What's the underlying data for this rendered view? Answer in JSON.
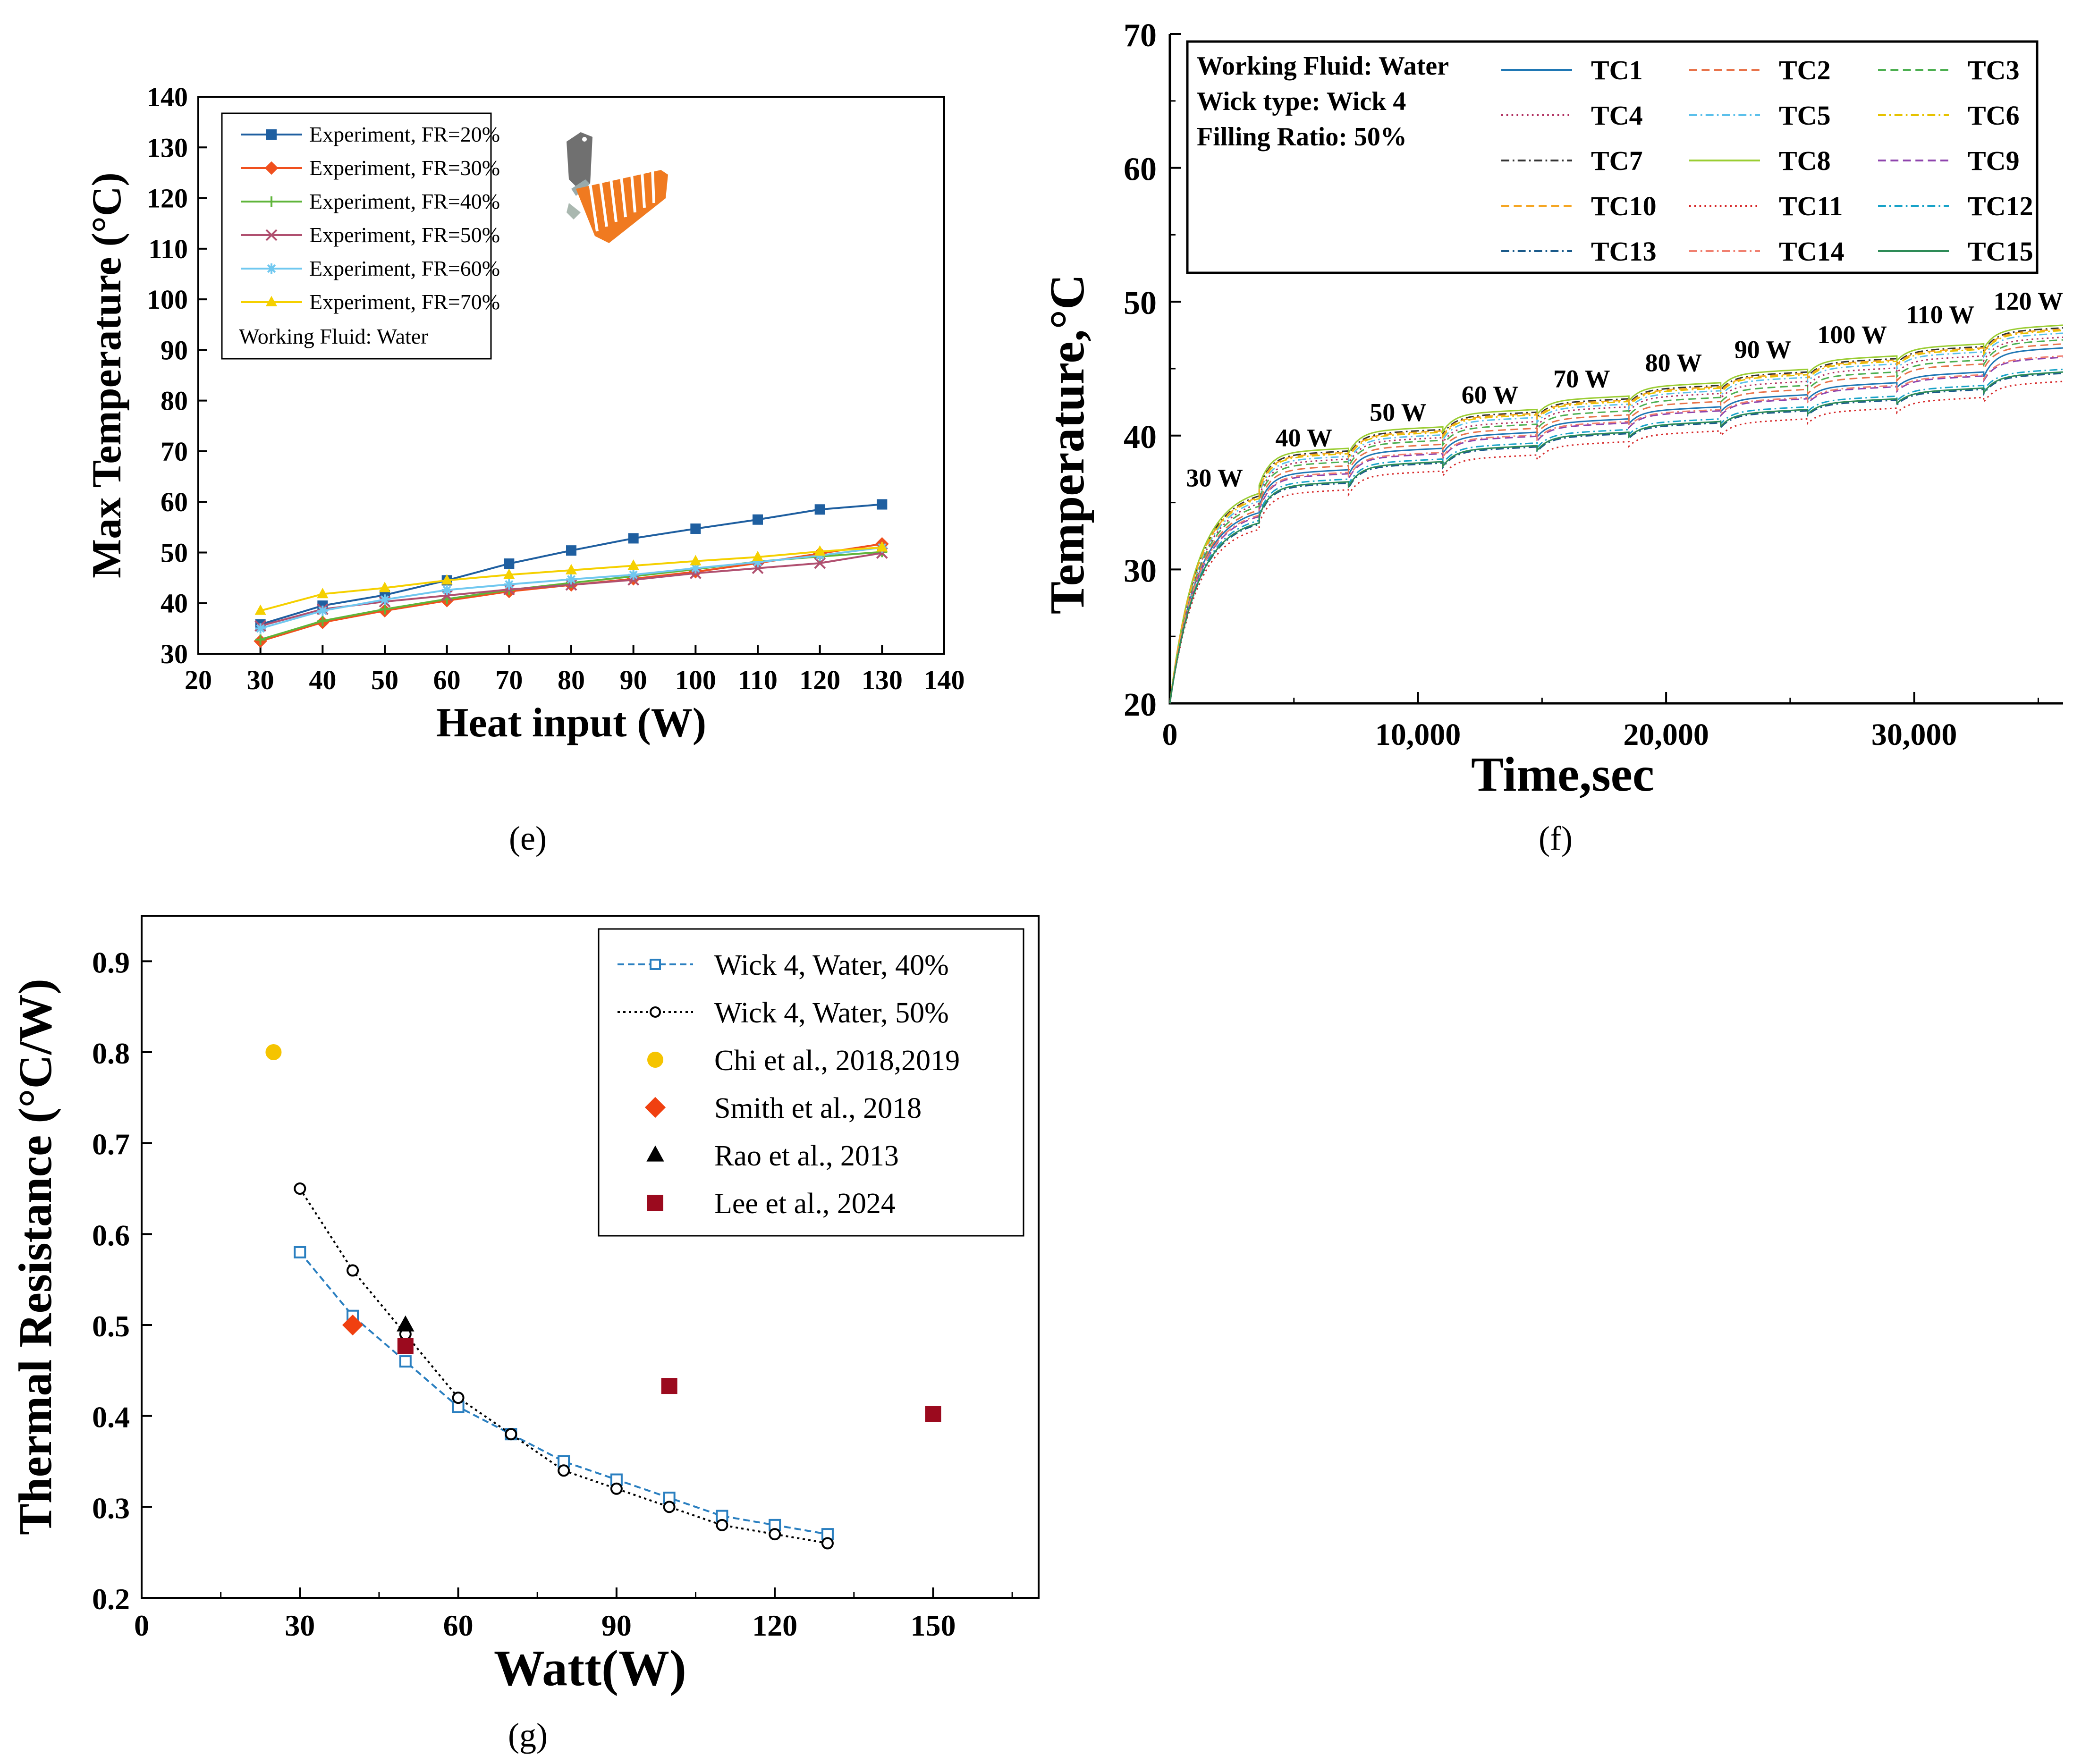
{
  "chart_data": [
    {
      "panel": "e",
      "type": "line",
      "caption": "(e)",
      "xlabel": "Heat input (W)",
      "ylabel": "Max Temperature (°C)",
      "xlim": [
        20,
        140
      ],
      "ylim": [
        30,
        140
      ],
      "xticks": [
        20,
        30,
        40,
        50,
        60,
        70,
        80,
        90,
        100,
        110,
        120,
        130,
        140
      ],
      "yticks": [
        30,
        40,
        50,
        60,
        70,
        80,
        90,
        100,
        110,
        120,
        130,
        140
      ],
      "x": [
        30,
        40,
        50,
        60,
        70,
        80,
        90,
        100,
        110,
        120,
        130
      ],
      "legend_note": "Working Fluid: Water",
      "legend_position": "top-left",
      "inset": "heat-pipe-model-icon",
      "series": [
        {
          "name": "Experiment, FR=20%",
          "color": "#1f5fa0",
          "marker": "square",
          "values": [
            35.8,
            39.5,
            41.6,
            44.5,
            47.8,
            50.4,
            52.8,
            54.7,
            56.5,
            58.5,
            59.5
          ]
        },
        {
          "name": "Experiment, FR=30%",
          "color": "#f0501e",
          "marker": "diamond",
          "values": [
            32.5,
            36.2,
            38.5,
            40.5,
            42.3,
            43.6,
            44.8,
            46.2,
            47.9,
            49.8,
            51.7
          ]
        },
        {
          "name": "Experiment, FR=40%",
          "color": "#5fb53a",
          "marker": "plus",
          "values": [
            32.8,
            36.5,
            38.8,
            40.8,
            42.6,
            44.0,
            45.3,
            46.7,
            48.2,
            49.2,
            50.1
          ]
        },
        {
          "name": "Experiment, FR=50%",
          "color": "#b05070",
          "marker": "x",
          "values": [
            35.5,
            38.8,
            40.3,
            41.5,
            42.7,
            43.6,
            44.6,
            45.9,
            46.9,
            47.9,
            49.9
          ]
        },
        {
          "name": "Experiment, FR=60%",
          "color": "#70c8f0",
          "marker": "asterisk",
          "values": [
            35.0,
            38.5,
            40.7,
            42.6,
            43.7,
            44.7,
            45.6,
            46.9,
            48.1,
            49.4,
            51.0
          ]
        },
        {
          "name": "Experiment, FR=70%",
          "color": "#f5d000",
          "marker": "triangle",
          "values": [
            38.5,
            41.8,
            43.0,
            44.5,
            45.6,
            46.5,
            47.4,
            48.3,
            49.1,
            50.2,
            51.0
          ]
        }
      ]
    },
    {
      "panel": "f",
      "type": "line",
      "caption": "(f)",
      "xlabel": "Time,sec",
      "ylabel": "Temperature,°C",
      "xlim": [
        0,
        36000
      ],
      "ylim": [
        20,
        70
      ],
      "xticks": [
        0,
        10000,
        20000,
        30000
      ],
      "xtick_labels": [
        "0",
        "10,000",
        "20,000",
        "30,000"
      ],
      "yticks": [
        20,
        30,
        40,
        50,
        60,
        70
      ],
      "info": [
        "Working Fluid: Water",
        "Wick type: Wick 4",
        "Filling Ratio: 50%"
      ],
      "legend_position": "top",
      "step_times": [
        0,
        3600,
        7200,
        11000,
        14800,
        18500,
        22200,
        25700,
        29300,
        32800
      ],
      "step_annotations": [
        {
          "label": "30 W",
          "x": 1800,
          "y": 36.2
        },
        {
          "label": "40 W",
          "x": 5400,
          "y": 39.2
        },
        {
          "label": "50 W",
          "x": 9200,
          "y": 41.1
        },
        {
          "label": "60 W",
          "x": 12900,
          "y": 42.4
        },
        {
          "label": "70 W",
          "x": 16600,
          "y": 43.6
        },
        {
          "label": "80 W",
          "x": 20300,
          "y": 44.8
        },
        {
          "label": "90 W",
          "x": 23900,
          "y": 45.8
        },
        {
          "label": "100 W",
          "x": 27500,
          "y": 46.9
        },
        {
          "label": "110 W",
          "x": 31050,
          "y": 48.4
        },
        {
          "label": "120 W",
          "x": 34600,
          "y": 49.4
        }
      ],
      "series": [
        {
          "name": "TC1",
          "color": "#1f77b4",
          "dash": "solid",
          "step_values": [
            34.8,
            37.1,
            38.7,
            39.9,
            40.9,
            41.8,
            42.7,
            43.6,
            44.4,
            46.2
          ]
        },
        {
          "name": "TC2",
          "color": "#e8734a",
          "dash": "dash",
          "step_values": [
            35.0,
            37.4,
            39.0,
            40.2,
            41.2,
            42.2,
            43.1,
            44.1,
            45.0,
            46.5
          ]
        },
        {
          "name": "TC3",
          "color": "#4caf50",
          "dash": "dash",
          "step_values": [
            35.3,
            37.7,
            39.3,
            40.5,
            41.5,
            42.5,
            43.4,
            44.4,
            45.3,
            46.8
          ]
        },
        {
          "name": "TC4",
          "color": "#b03060",
          "dash": "dot",
          "step_values": [
            35.5,
            37.9,
            39.5,
            40.7,
            41.8,
            42.8,
            43.7,
            44.7,
            45.6,
            47.0
          ]
        },
        {
          "name": "TC5",
          "color": "#5bc0eb",
          "dash": "dashdot",
          "step_values": [
            35.7,
            38.1,
            39.7,
            41.0,
            42.0,
            43.0,
            44.0,
            45.0,
            45.9,
            47.3
          ]
        },
        {
          "name": "TC6",
          "color": "#e6c200",
          "dash": "dashdot",
          "step_values": [
            35.9,
            38.3,
            39.9,
            41.2,
            42.2,
            43.2,
            44.2,
            45.2,
            46.1,
            47.5
          ]
        },
        {
          "name": "TC7",
          "color": "#333333",
          "dash": "dashdot",
          "step_values": [
            36.1,
            38.5,
            40.1,
            41.4,
            42.4,
            43.4,
            44.4,
            45.4,
            46.3,
            47.7
          ]
        },
        {
          "name": "TC8",
          "color": "#9acd32",
          "dash": "solid",
          "step_values": [
            36.3,
            38.7,
            40.3,
            41.6,
            42.6,
            43.6,
            44.6,
            45.6,
            46.5,
            47.9
          ]
        },
        {
          "name": "TC9",
          "color": "#8e44ad",
          "dash": "dash",
          "step_values": [
            34.5,
            36.8,
            38.3,
            39.6,
            40.6,
            41.5,
            42.4,
            43.3,
            44.1,
            45.5
          ]
        },
        {
          "name": "TC10",
          "color": "#f5a623",
          "dash": "dash",
          "step_values": [
            36.0,
            38.4,
            40.0,
            41.3,
            42.3,
            43.3,
            44.3,
            45.3,
            46.2,
            47.6
          ]
        },
        {
          "name": "TC11",
          "color": "#d62728",
          "dash": "dot",
          "step_values": [
            33.5,
            35.6,
            37.0,
            38.2,
            39.2,
            40.0,
            40.9,
            41.7,
            42.5,
            43.7
          ]
        },
        {
          "name": "TC12",
          "color": "#17a2c8",
          "dash": "dashdot",
          "step_values": [
            34.2,
            36.4,
            37.9,
            39.1,
            40.1,
            40.9,
            41.8,
            42.6,
            43.4,
            44.6
          ]
        },
        {
          "name": "TC13",
          "color": "#1a5a8a",
          "dash": "dashdot",
          "step_values": [
            33.9,
            36.1,
            37.6,
            38.8,
            39.8,
            40.6,
            41.5,
            42.3,
            43.1,
            44.3
          ]
        },
        {
          "name": "TC14",
          "color": "#f08070",
          "dash": "dashdot",
          "step_values": [
            34.6,
            36.9,
            38.4,
            39.7,
            40.7,
            41.6,
            42.5,
            43.4,
            44.2,
            45.6
          ]
        },
        {
          "name": "TC15",
          "color": "#2e8b57",
          "dash": "solid",
          "step_values": [
            34.0,
            36.2,
            37.7,
            38.9,
            39.9,
            40.7,
            41.6,
            42.4,
            43.2,
            44.4
          ]
        }
      ]
    },
    {
      "panel": "g",
      "type": "scatter",
      "caption": "(g)",
      "xlabel": "Watt(W)",
      "ylabel": "Thermal Resistance (°C/W)",
      "xlim": [
        0,
        170
      ],
      "ylim": [
        0.2,
        0.95
      ],
      "xticks": [
        0,
        30,
        60,
        90,
        120,
        150
      ],
      "yticks": [
        0.2,
        0.3,
        0.4,
        0.5,
        0.6,
        0.7,
        0.8,
        0.9
      ],
      "ytick_labels": [
        "0.2",
        "0.3",
        "0.4",
        "0.5",
        "0.6",
        "0.7",
        "0.8",
        "0.9"
      ],
      "legend_position": "top-right",
      "series": [
        {
          "name": "Wick 4, Water, 40%",
          "color": "#2a7fc0",
          "marker": "open-square",
          "line": "dash",
          "x": [
            30,
            40,
            50,
            60,
            70,
            80,
            90,
            100,
            110,
            120,
            130
          ],
          "values": [
            0.58,
            0.51,
            0.46,
            0.41,
            0.38,
            0.35,
            0.33,
            0.31,
            0.29,
            0.28,
            0.27
          ]
        },
        {
          "name": "Wick 4, Water, 50%",
          "color": "#000000",
          "marker": "open-circle",
          "line": "dot",
          "x": [
            30,
            40,
            50,
            60,
            70,
            80,
            90,
            100,
            110,
            120,
            130
          ],
          "values": [
            0.65,
            0.56,
            0.49,
            0.42,
            0.38,
            0.34,
            0.32,
            0.3,
            0.28,
            0.27,
            0.26
          ]
        },
        {
          "name": "Chi et al., 2018,2019",
          "color": "#f5c400",
          "marker": "filled-circle",
          "line": "none",
          "x": [
            25
          ],
          "values": [
            0.8
          ]
        },
        {
          "name": "Smith et al., 2018",
          "color": "#f04010",
          "marker": "filled-diamond",
          "line": "none",
          "x": [
            40
          ],
          "values": [
            0.5
          ]
        },
        {
          "name": "Rao et al., 2013",
          "color": "#000000",
          "marker": "filled-triangle",
          "line": "none",
          "x": [
            50
          ],
          "values": [
            0.5
          ]
        },
        {
          "name": "Lee et al., 2024",
          "color": "#9b0a1e",
          "marker": "filled-square",
          "line": "none",
          "x": [
            50,
            100,
            150
          ],
          "values": [
            0.477,
            0.433,
            0.402
          ]
        }
      ]
    }
  ]
}
